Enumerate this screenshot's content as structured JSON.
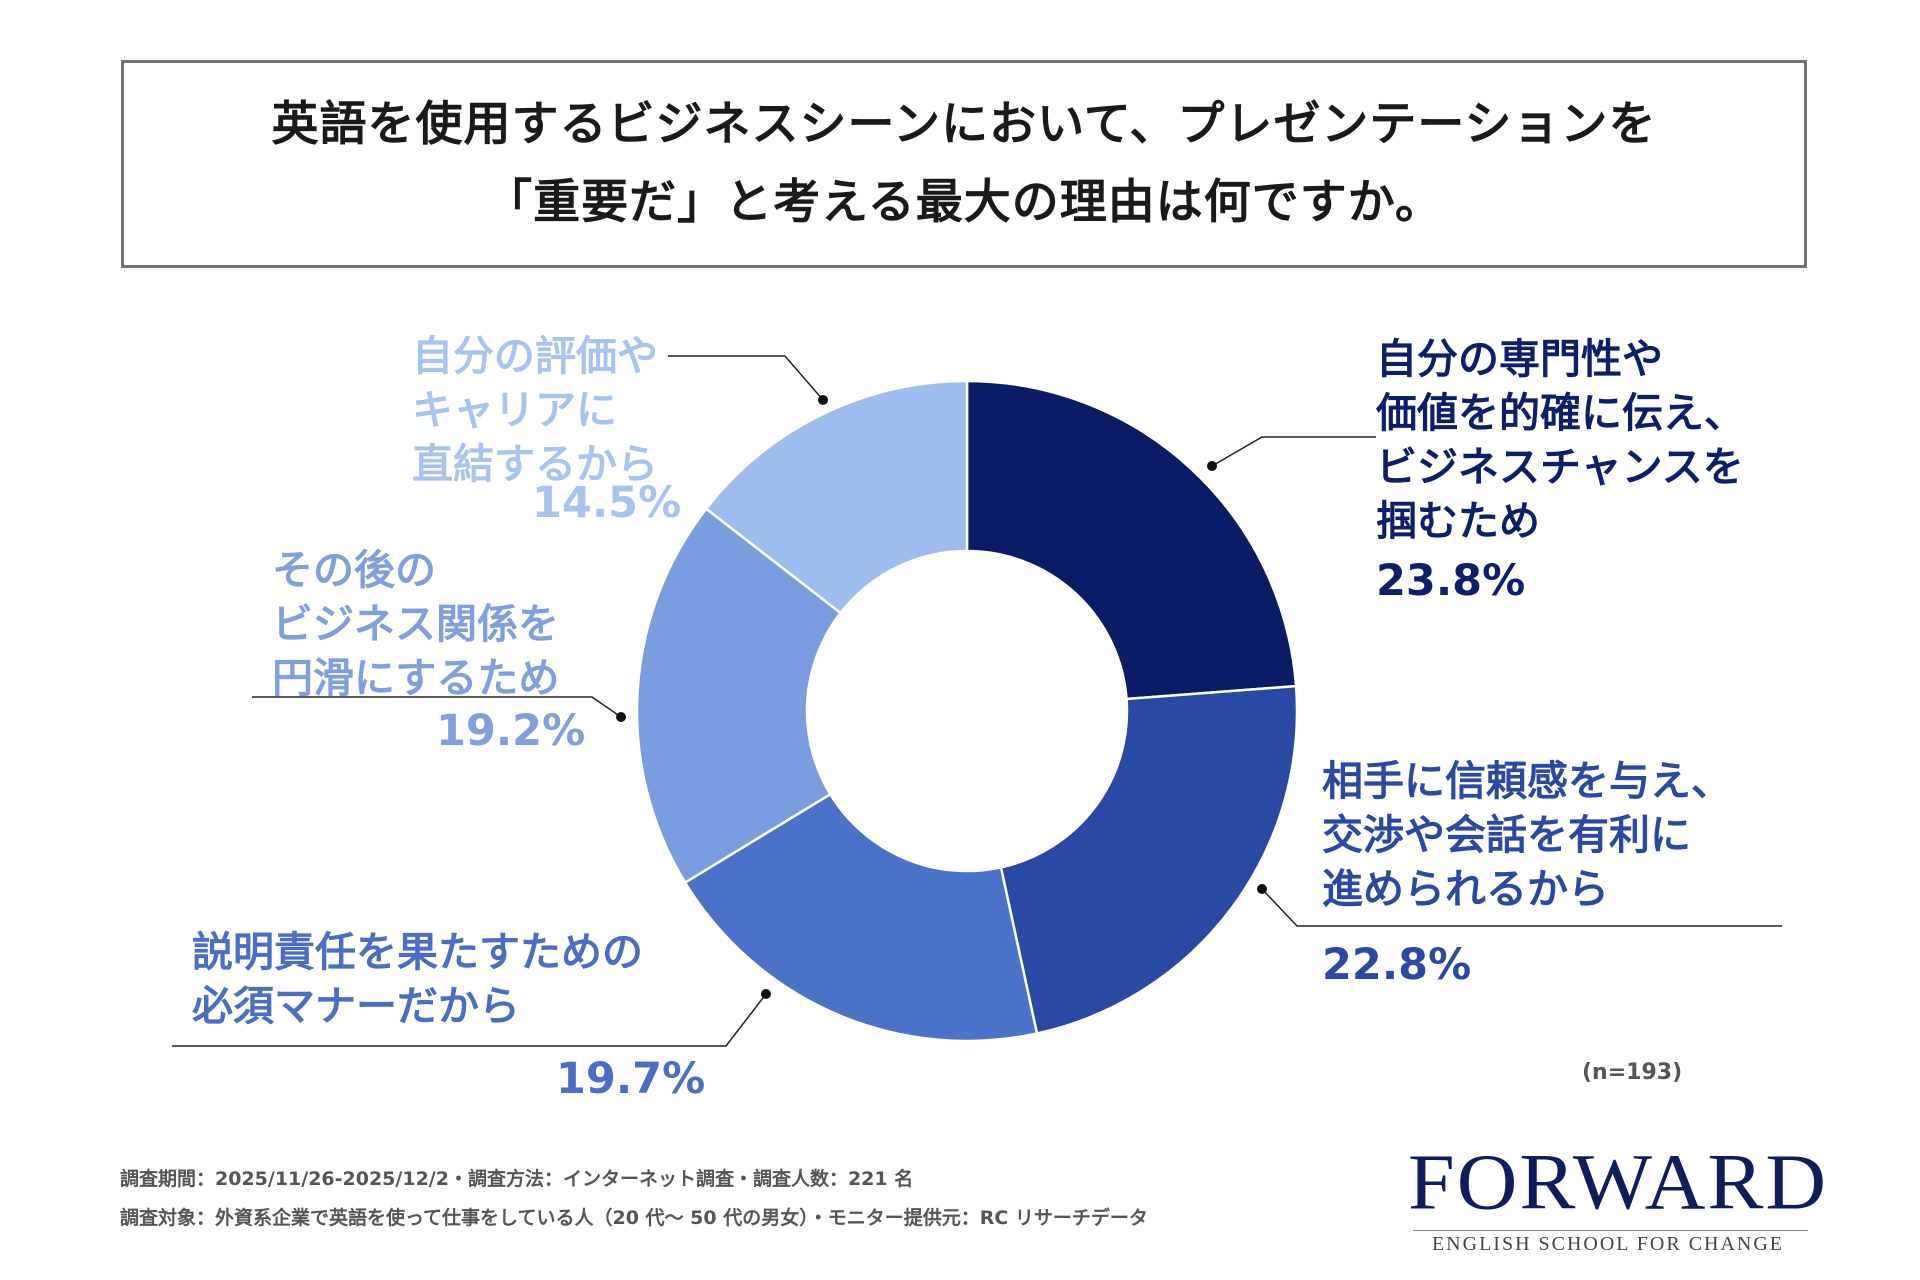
{
  "title": {
    "line1": "英語を使用するビジネスシーンにおいて、プレゼンテーションを",
    "line2": "「重要だ」と考える最大の理由は何ですか。"
  },
  "chart_data": {
    "type": "pie",
    "variant": "donut",
    "sample_size": "(n=193)",
    "slices": [
      {
        "label": "自分の専門性や価値を的確に伝え、ビジネスチャンスを掴むため",
        "label_lines": [
          "自分の専門性や",
          "価値を的確に伝え、",
          "ビジネスチャンスを",
          "掴むため"
        ],
        "value": 23.8,
        "display": "23.8%",
        "color": "#0a1c66"
      },
      {
        "label": "相手に信頼感を与え、交渉や会話を有利に進められるから",
        "label_lines": [
          "相手に信頼感を与え、",
          "交渉や会話を有利に",
          "進められるから"
        ],
        "value": 22.8,
        "display": "22.8%",
        "color": "#2a49a5"
      },
      {
        "label": "説明責任を果たすための必須マナーだから",
        "label_lines": [
          "説明責任を果たすための",
          "必須マナーだから"
        ],
        "value": 19.7,
        "display": "19.7%",
        "color": "#4b72c9"
      },
      {
        "label": "その後のビジネス関係を円滑にするため",
        "label_lines": [
          "その後の",
          "ビジネス関係を",
          "円滑にするため"
        ],
        "value": 19.2,
        "display": "19.2%",
        "color": "#7a9de0"
      },
      {
        "label": "自分の評価やキャリアに直結するから",
        "label_lines": [
          "自分の評価や",
          "キャリアに",
          "直結するから"
        ],
        "value": 14.5,
        "display": "14.5%",
        "color": "#9dbcf0"
      }
    ]
  },
  "footnotes": {
    "line1": "調査期間：2025/11/26-2025/12/2・調査方法：インターネット調査・調査人数：221 名",
    "line2": "調査対象：外資系企業で英語を使って仕事をしている人（20 代～ 50 代の男女）・モニター提供元：RC リサーチデータ"
  },
  "logo": {
    "main": "FORWARD",
    "sub": "ENGLISH SCHOOL FOR CHANGE"
  }
}
